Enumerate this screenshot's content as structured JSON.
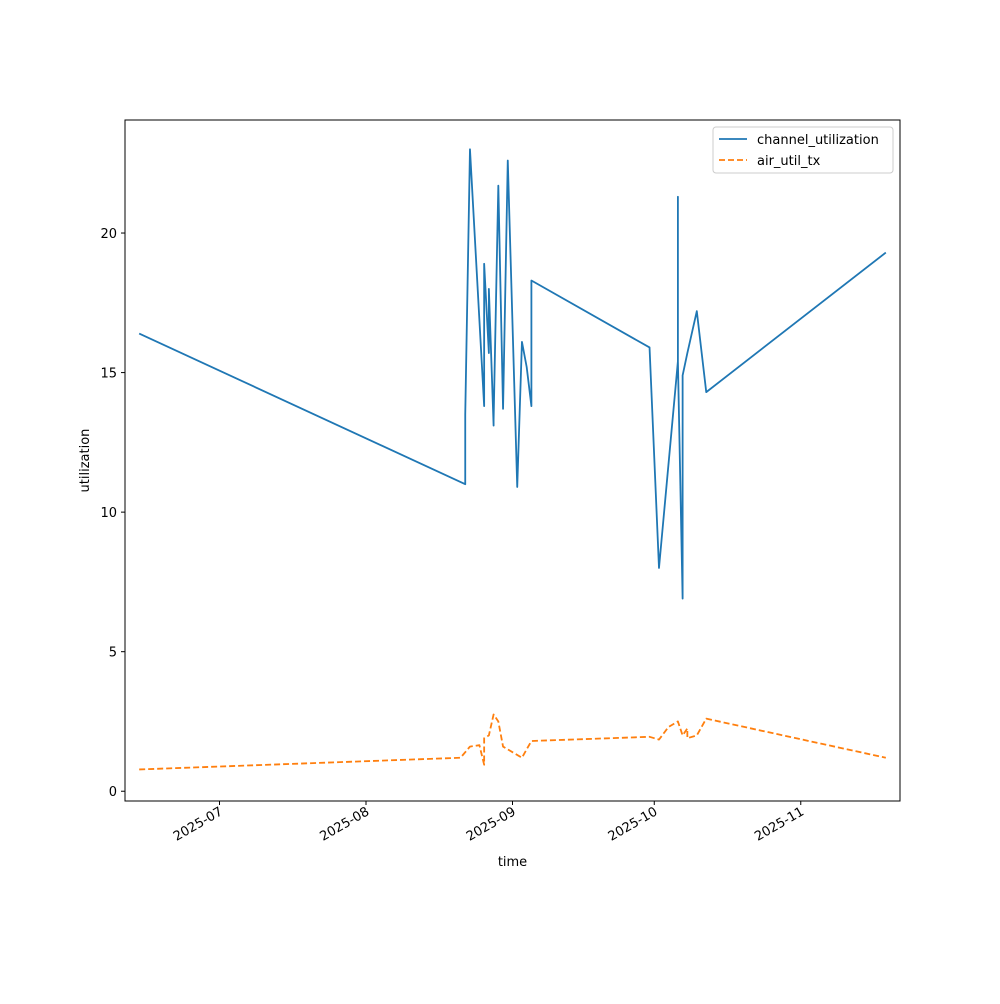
{
  "chart_data": {
    "type": "line",
    "title": "",
    "xlabel": "time",
    "ylabel": "utilization",
    "x_tick_labels": [
      "2025-07",
      "2025-08",
      "2025-09",
      "2025-10",
      "2025-11"
    ],
    "x_ticks": [
      "2025-07-01",
      "2025-08-01",
      "2025-09-01",
      "2025-10-01",
      "2025-11-01"
    ],
    "xlim": [
      "2025-06-11",
      "2025-11-22"
    ],
    "y_ticks": [
      0,
      5,
      10,
      15,
      20
    ],
    "ylim": [
      -0.35,
      24.05
    ],
    "grid": false,
    "legend": "top-right",
    "series": [
      {
        "name": "channel_utilization",
        "color": "#1f77b4",
        "dash": "solid",
        "points": [
          [
            "2025-06-14",
            16.4
          ],
          [
            "2025-08-22",
            11.0
          ],
          [
            "2025-08-22",
            13.5
          ],
          [
            "2025-08-23",
            23.0
          ],
          [
            "2025-08-26",
            13.8
          ],
          [
            "2025-08-26",
            18.9
          ],
          [
            "2025-08-27",
            15.7
          ],
          [
            "2025-08-27",
            18.0
          ],
          [
            "2025-08-28",
            13.1
          ],
          [
            "2025-08-28",
            13.3
          ],
          [
            "2025-08-29",
            21.7
          ],
          [
            "2025-08-30",
            13.7
          ],
          [
            "2025-08-31",
            22.6
          ],
          [
            "2025-09-02",
            10.9
          ],
          [
            "2025-09-03",
            16.1
          ],
          [
            "2025-09-04",
            15.2
          ],
          [
            "2025-09-05",
            13.8
          ],
          [
            "2025-09-05",
            18.3
          ],
          [
            "2025-09-30",
            15.9
          ],
          [
            "2025-10-02",
            8.0
          ],
          [
            "2025-10-06",
            15.4
          ],
          [
            "2025-10-06",
            21.3
          ],
          [
            "2025-10-06",
            15.4
          ],
          [
            "2025-10-07",
            6.9
          ],
          [
            "2025-10-07",
            14.9
          ],
          [
            "2025-10-08",
            15.7
          ],
          [
            "2025-10-10",
            17.2
          ],
          [
            "2025-10-12",
            14.3
          ],
          [
            "2025-11-19",
            19.3
          ]
        ]
      },
      {
        "name": "air_util_tx",
        "color": "#ff7f0e",
        "dash": "dashed",
        "points": [
          [
            "2025-06-14",
            0.78
          ],
          [
            "2025-08-21",
            1.2
          ],
          [
            "2025-08-23",
            1.6
          ],
          [
            "2025-08-25",
            1.65
          ],
          [
            "2025-08-26",
            0.95
          ],
          [
            "2025-08-26",
            1.9
          ],
          [
            "2025-08-27",
            2.0
          ],
          [
            "2025-08-28",
            2.75
          ],
          [
            "2025-08-29",
            2.5
          ],
          [
            "2025-08-30",
            1.6
          ],
          [
            "2025-08-31",
            1.5
          ],
          [
            "2025-09-03",
            1.2
          ],
          [
            "2025-09-05",
            1.8
          ],
          [
            "2025-09-30",
            1.95
          ],
          [
            "2025-10-02",
            1.85
          ],
          [
            "2025-10-04",
            2.3
          ],
          [
            "2025-10-06",
            2.5
          ],
          [
            "2025-10-07",
            2.0
          ],
          [
            "2025-10-08",
            2.25
          ],
          [
            "2025-10-08",
            1.9
          ],
          [
            "2025-10-10",
            2.0
          ],
          [
            "2025-10-12",
            2.6
          ],
          [
            "2025-11-19",
            1.2
          ]
        ]
      }
    ]
  }
}
